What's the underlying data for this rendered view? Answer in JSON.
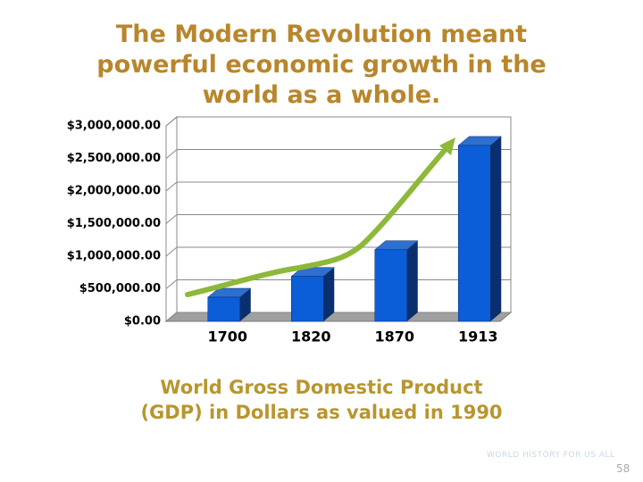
{
  "chart_data": {
    "type": "bar",
    "title": "The Modern Revolution meant powerful economic growth in the world as a whole.",
    "caption": "World Gross Domestic Product (GDP) in Dollars as valued in 1990",
    "categories": [
      "1700",
      "1820",
      "1870",
      "1913"
    ],
    "values": [
      370000,
      690000,
      1100000,
      2700000
    ],
    "color": "#0b5ed7",
    "ylim": [
      0,
      3000000
    ],
    "yticks": [
      {
        "value": 0,
        "label": "$0.00"
      },
      {
        "value": 500000,
        "label": "$500,000.00"
      },
      {
        "value": 1000000,
        "label": "$1,000,000.00"
      },
      {
        "value": 1500000,
        "label": "$1,500,000.00"
      },
      {
        "value": 2000000,
        "label": "$2,000,000.00"
      },
      {
        "value": 2500000,
        "label": "$2,500,000.00"
      },
      {
        "value": 3000000,
        "label": "$3,000,000.00"
      }
    ],
    "grid": true
  },
  "logo": "WORLD HISTORY FOR US ALL",
  "page_number": "58"
}
